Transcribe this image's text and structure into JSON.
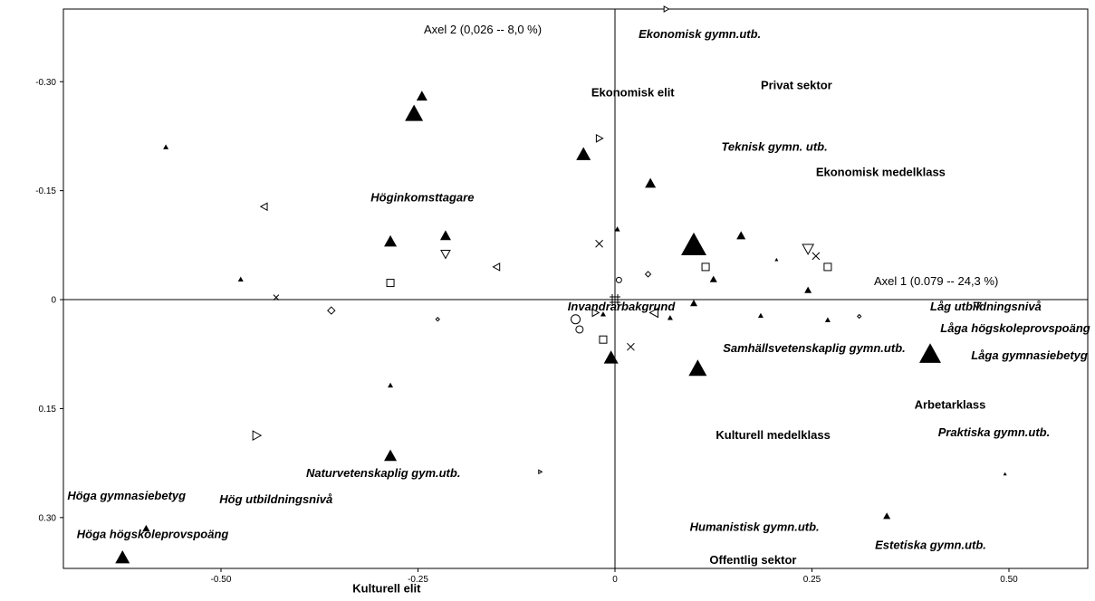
{
  "chart_data": {
    "type": "scatter",
    "x_axis_title": "Axel 1 (0.079 -- 24,3 %)",
    "y_axis_title": "Axel 2 (0,026 -- 8,0 %)",
    "xlim": [
      -0.7,
      0.6
    ],
    "ylim": [
      0.37,
      -0.4
    ],
    "y_inverted": true,
    "x_ticks": [
      -0.5,
      -0.25,
      0,
      0.25,
      0.5
    ],
    "x_tick_labels": [
      "-0.50",
      "-0.25",
      "0",
      "0.25",
      "0.50"
    ],
    "y_ticks": [
      -0.3,
      -0.15,
      0,
      0.15,
      0.3
    ],
    "y_tick_labels": [
      "-0.30",
      "-0.15",
      "0",
      "0.15",
      "0.30"
    ],
    "grid": false,
    "labels": [
      {
        "text": "Ekonomisk gymn.utb.",
        "x": 0.03,
        "y": -0.36,
        "italic": true
      },
      {
        "text": "Ekonomisk elit",
        "x": -0.03,
        "y": -0.28,
        "italic": false
      },
      {
        "text": "Privat sektor",
        "x": 0.185,
        "y": -0.29,
        "italic": false
      },
      {
        "text": "Teknisk gymn. utb.",
        "x": 0.135,
        "y": -0.205,
        "italic": true
      },
      {
        "text": "Ekonomisk medelklass",
        "x": 0.255,
        "y": -0.17,
        "italic": false
      },
      {
        "text": "Höginkomsttagare",
        "x": -0.31,
        "y": -0.135,
        "italic": true
      },
      {
        "text": "Invandrarbakgrund",
        "x": -0.06,
        "y": 0.015,
        "italic": true
      },
      {
        "text": "Låg utbildningsnivå",
        "x": 0.4,
        "y": 0.015,
        "italic": true
      },
      {
        "text": "Låga högskoleprovspoäng",
        "x": 0.413,
        "y": 0.045,
        "italic": true
      },
      {
        "text": "Samhällsvetenskaplig gymn.utb.",
        "x": 0.137,
        "y": 0.072,
        "italic": true
      },
      {
        "text": "Låga gymnasiebetyg",
        "x": 0.452,
        "y": 0.082,
        "italic": true
      },
      {
        "text": "Arbetarklass",
        "x": 0.38,
        "y": 0.15,
        "italic": false
      },
      {
        "text": "Kulturell medelklass",
        "x": 0.128,
        "y": 0.192,
        "italic": false
      },
      {
        "text": "Praktiska gymn.utb.",
        "x": 0.41,
        "y": 0.188,
        "italic": true
      },
      {
        "text": "Naturvetenskaplig gym.utb.",
        "x": -0.392,
        "y": 0.244,
        "italic": true
      },
      {
        "text": "Höga gymnasiebetyg",
        "x": -0.695,
        "y": 0.275,
        "italic": true
      },
      {
        "text": "Hög utbildningsnivå",
        "x": -0.502,
        "y": 0.28,
        "italic": true
      },
      {
        "text": "Höga högskoleprovspoäng",
        "x": -0.683,
        "y": 0.328,
        "italic": true
      },
      {
        "text": "Humanistisk gymn.utb.",
        "x": 0.095,
        "y": 0.318,
        "italic": true
      },
      {
        "text": "Estetiska gymn.utb.",
        "x": 0.33,
        "y": 0.343,
        "italic": true
      },
      {
        "text": "Offentlig sektor",
        "x": 0.12,
        "y": 0.364,
        "italic": false
      },
      {
        "text": "Kulturell elit",
        "x": -0.333,
        "y": 0.403,
        "italic": false
      }
    ],
    "points": [
      {
        "x": -0.255,
        "y": -0.256,
        "marker": "triangle",
        "size": 10
      },
      {
        "x": -0.245,
        "y": -0.28,
        "marker": "triangle",
        "size": 6
      },
      {
        "x": -0.04,
        "y": -0.2,
        "marker": "triangle",
        "size": 8
      },
      {
        "x": 0.045,
        "y": -0.16,
        "marker": "triangle",
        "size": 6
      },
      {
        "x": 0.1,
        "y": -0.075,
        "marker": "triangle",
        "size": 14
      },
      {
        "x": -0.285,
        "y": -0.08,
        "marker": "triangle",
        "size": 7
      },
      {
        "x": -0.215,
        "y": -0.088,
        "marker": "triangle",
        "size": 6
      },
      {
        "x": 0.16,
        "y": -0.088,
        "marker": "triangle",
        "size": 5
      },
      {
        "x": -0.57,
        "y": -0.21,
        "marker": "triangle",
        "size": 3
      },
      {
        "x": 0.003,
        "y": -0.097,
        "marker": "triangle",
        "size": 3
      },
      {
        "x": -0.475,
        "y": -0.028,
        "marker": "triangle",
        "size": 3
      },
      {
        "x": 0.125,
        "y": -0.028,
        "marker": "triangle",
        "size": 4
      },
      {
        "x": 0.245,
        "y": -0.013,
        "marker": "triangle",
        "size": 4
      },
      {
        "x": 0.205,
        "y": -0.055,
        "marker": "triangle",
        "size": 2
      },
      {
        "x": 0.1,
        "y": 0.005,
        "marker": "triangle",
        "size": 4
      },
      {
        "x": 0.185,
        "y": 0.022,
        "marker": "triangle",
        "size": 3
      },
      {
        "x": 0.27,
        "y": 0.028,
        "marker": "triangle",
        "size": 3
      },
      {
        "x": -0.015,
        "y": 0.02,
        "marker": "triangle",
        "size": 3
      },
      {
        "x": 0.07,
        "y": 0.025,
        "marker": "triangle",
        "size": 3
      },
      {
        "x": 0.4,
        "y": 0.075,
        "marker": "triangle",
        "size": 12
      },
      {
        "x": 0.105,
        "y": 0.095,
        "marker": "triangle",
        "size": 10
      },
      {
        "x": -0.005,
        "y": 0.08,
        "marker": "triangle",
        "size": 8
      },
      {
        "x": -0.285,
        "y": 0.118,
        "marker": "triangle",
        "size": 3
      },
      {
        "x": -0.285,
        "y": 0.215,
        "marker": "triangle",
        "size": 7
      },
      {
        "x": -0.595,
        "y": 0.315,
        "marker": "triangle",
        "size": 4
      },
      {
        "x": -0.625,
        "y": 0.355,
        "marker": "triangle",
        "size": 8
      },
      {
        "x": 0.345,
        "y": 0.298,
        "marker": "triangle",
        "size": 4
      },
      {
        "x": 0.495,
        "y": 0.24,
        "marker": "triangle",
        "size": 2
      },
      {
        "x": 0.245,
        "y": -0.07,
        "marker": "tri-down",
        "size": 6
      },
      {
        "x": -0.215,
        "y": -0.063,
        "marker": "tri-down",
        "size": 5
      },
      {
        "x": 0.46,
        "y": 0.008,
        "marker": "tri-down",
        "size": 4
      },
      {
        "x": -0.02,
        "y": -0.222,
        "marker": "tri-right",
        "size": 4
      },
      {
        "x": 0.065,
        "y": -0.4,
        "marker": "tri-right",
        "size": 3
      },
      {
        "x": -0.455,
        "y": 0.187,
        "marker": "tri-right",
        "size": 5
      },
      {
        "x": -0.095,
        "y": 0.237,
        "marker": "tri-right",
        "size": 2
      },
      {
        "x": -0.025,
        "y": 0.018,
        "marker": "tri-right",
        "size": 4
      },
      {
        "x": -0.445,
        "y": -0.128,
        "marker": "tri-left",
        "size": 4
      },
      {
        "x": -0.15,
        "y": -0.045,
        "marker": "tri-left",
        "size": 4
      },
      {
        "x": 0.05,
        "y": 0.018,
        "marker": "tri-left",
        "size": 5
      },
      {
        "x": -0.05,
        "y": 0.027,
        "marker": "circle",
        "size": 5
      },
      {
        "x": -0.045,
        "y": 0.041,
        "marker": "circle",
        "size": 4
      },
      {
        "x": 0.005,
        "y": -0.027,
        "marker": "circle",
        "size": 3
      },
      {
        "x": -0.285,
        "y": -0.023,
        "marker": "square",
        "size": 4
      },
      {
        "x": 0.115,
        "y": -0.045,
        "marker": "square",
        "size": 4
      },
      {
        "x": 0.27,
        "y": -0.045,
        "marker": "square",
        "size": 4
      },
      {
        "x": -0.015,
        "y": 0.055,
        "marker": "square",
        "size": 4
      },
      {
        "x": -0.225,
        "y": 0.027,
        "marker": "diamond",
        "size": 2
      },
      {
        "x": -0.36,
        "y": 0.015,
        "marker": "diamond",
        "size": 4
      },
      {
        "x": 0.042,
        "y": -0.035,
        "marker": "diamond",
        "size": 3
      },
      {
        "x": 0.31,
        "y": 0.023,
        "marker": "diamond",
        "size": 2
      },
      {
        "x": -0.43,
        "y": -0.003,
        "marker": "x",
        "size": 3
      },
      {
        "x": -0.02,
        "y": -0.077,
        "marker": "x",
        "size": 4
      },
      {
        "x": 0.02,
        "y": 0.065,
        "marker": "x",
        "size": 4
      },
      {
        "x": 0.255,
        "y": -0.06,
        "marker": "x",
        "size": 4
      },
      {
        "x": 0.0,
        "y": 0.0,
        "marker": "hash",
        "size": 6
      }
    ]
  }
}
